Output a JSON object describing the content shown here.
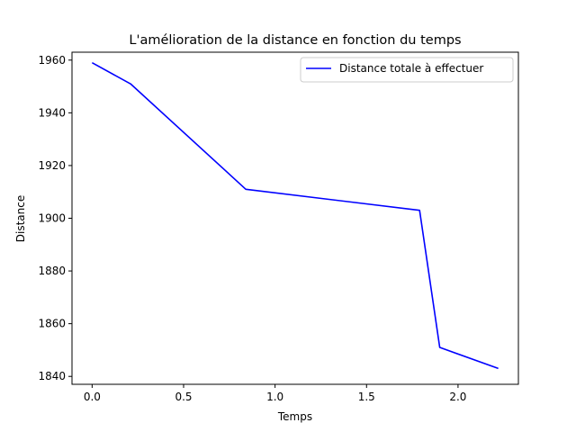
{
  "chart_data": {
    "type": "line",
    "title": "L'amélioration de la distance en fonction du temps",
    "xlabel": "Temps",
    "ylabel": "Distance",
    "xlim": [
      -0.11,
      2.33
    ],
    "ylim": [
      1837,
      1963
    ],
    "xticks": [
      0.0,
      0.5,
      1.0,
      1.5,
      2.0
    ],
    "xtick_labels": [
      "0.0",
      "0.5",
      "1.0",
      "1.5",
      "2.0"
    ],
    "yticks": [
      1840,
      1860,
      1880,
      1900,
      1920,
      1940,
      1960
    ],
    "ytick_labels": [
      "1840",
      "1860",
      "1880",
      "1900",
      "1920",
      "1940",
      "1960"
    ],
    "grid": false,
    "legend": {
      "position": "upper right"
    },
    "series": [
      {
        "name": "Distance totale à effectuer",
        "color": "#0000ff",
        "x": [
          0.0,
          0.21,
          0.84,
          1.79,
          1.9,
          2.22
        ],
        "y": [
          1959,
          1951,
          1911,
          1903,
          1851,
          1843
        ]
      }
    ]
  }
}
